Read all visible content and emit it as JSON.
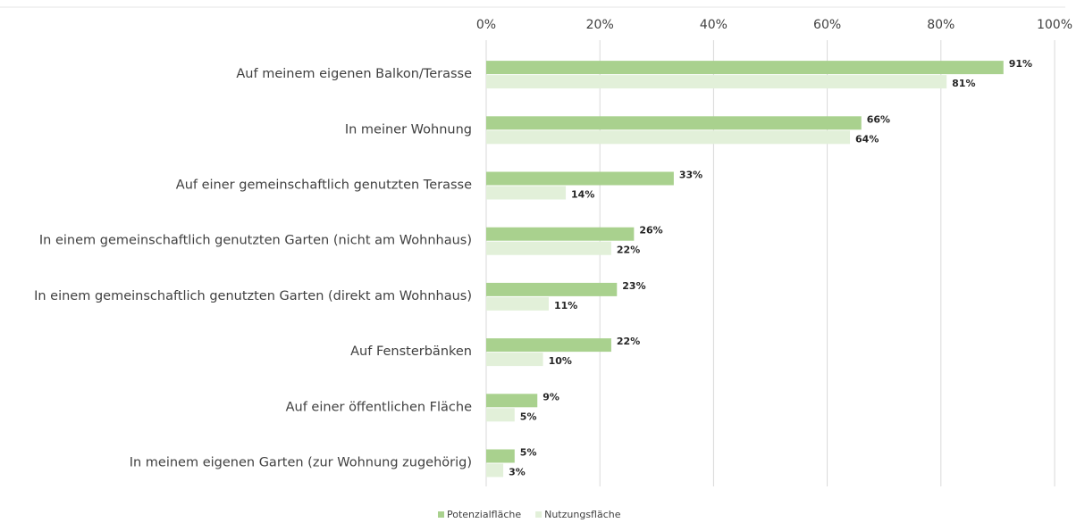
{
  "chart_data": {
    "type": "bar",
    "orientation": "horizontal",
    "categories": [
      "Auf meinem eigenen Balkon/Terasse",
      "In meiner Wohnung",
      "Auf einer gemeinschaftlich genutzten Terasse",
      "In einem gemeinschaftlich genutzten Garten (nicht am Wohnhaus)",
      "In einem gemeinschaftlich genutzten Garten (direkt am Wohnhaus)",
      "Auf Fensterbänken",
      "Auf einer öffentlichen Fläche",
      "In meinem eigenen Garten (zur Wohnung zugehörig)"
    ],
    "series": [
      {
        "name": "Potenzialfläche",
        "color": "#a9d18e",
        "values": [
          91,
          66,
          33,
          26,
          23,
          22,
          9,
          5
        ],
        "value_labels": [
          "91%",
          "66%",
          "33%",
          "26%",
          "23%",
          "22%",
          "9%",
          "5%"
        ]
      },
      {
        "name": "Nutzungsfläche",
        "color": "#e2f0d9",
        "values": [
          81,
          64,
          14,
          22,
          11,
          10,
          5,
          3
        ],
        "value_labels": [
          "81%",
          "64%",
          "14%",
          "22%",
          "11%",
          "10%",
          "5%",
          "3%"
        ]
      }
    ],
    "xlim": [
      0,
      100
    ],
    "xticks": [
      {
        "value": 0,
        "label": "0%"
      },
      {
        "value": 20,
        "label": "20%"
      },
      {
        "value": 40,
        "label": "40%"
      },
      {
        "value": 60,
        "label": "60%"
      },
      {
        "value": 80,
        "label": "80%"
      },
      {
        "value": 100,
        "label": "100%"
      }
    ],
    "grid": true,
    "legend": "bottom"
  }
}
